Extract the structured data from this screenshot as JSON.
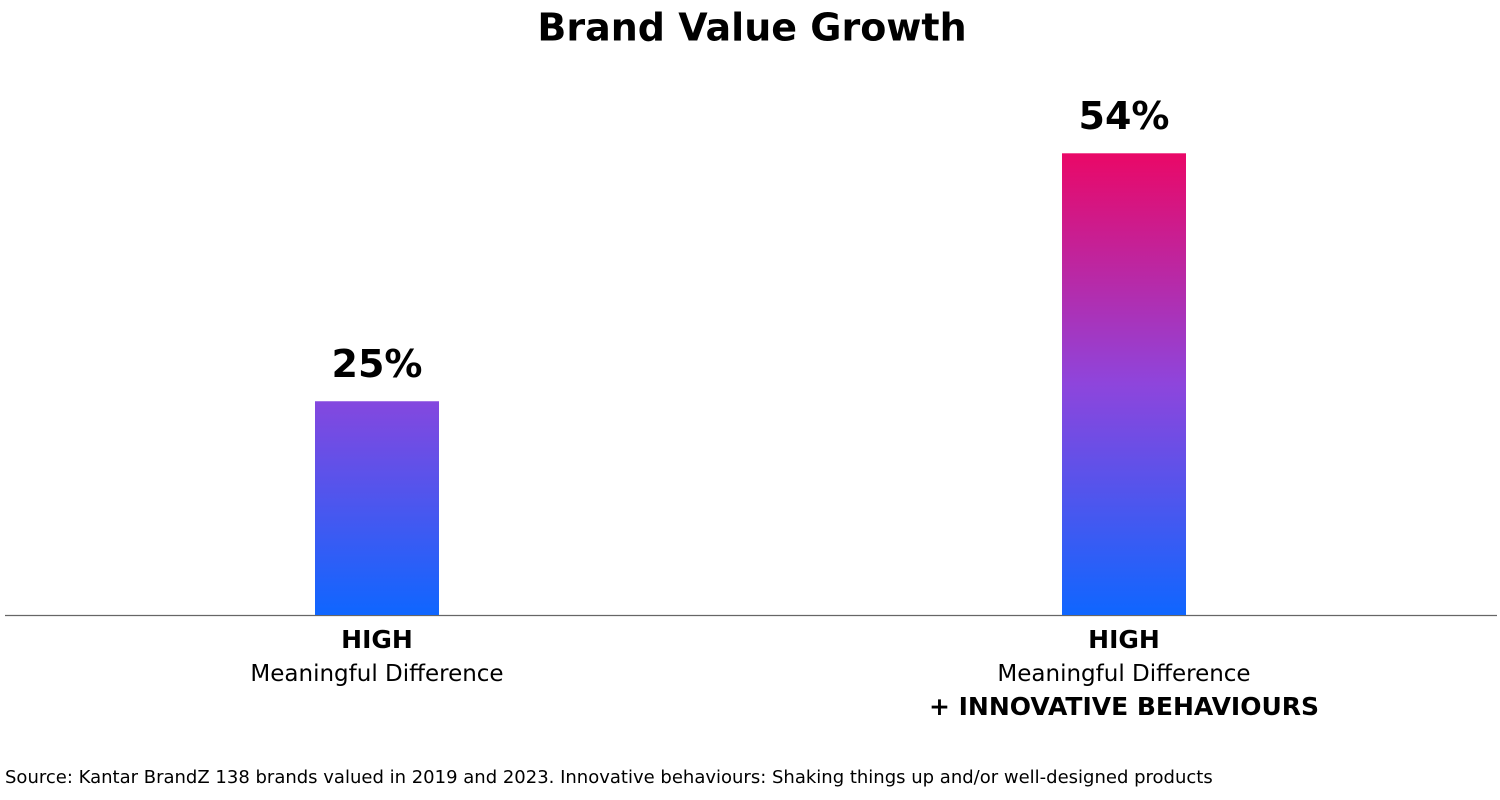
{
  "chart_data": {
    "type": "bar",
    "title": "Brand Value Growth",
    "categories": [
      [
        "HIGH",
        "Meaningful Difference"
      ],
      [
        "HIGH",
        "Meaningful Difference",
        "+ INNOVATIVE BEHAVIOURS"
      ]
    ],
    "values": [
      25,
      54
    ],
    "value_labels": [
      "25%",
      "54%"
    ],
    "gradient": [
      "#0f66ff",
      "#8e45dc",
      "#ea0867"
    ],
    "source": "Source: Kantar BrandZ 138 brands valued in 2019 and 2023. Innovative behaviours: Shaking things up and/or well-designed products"
  }
}
